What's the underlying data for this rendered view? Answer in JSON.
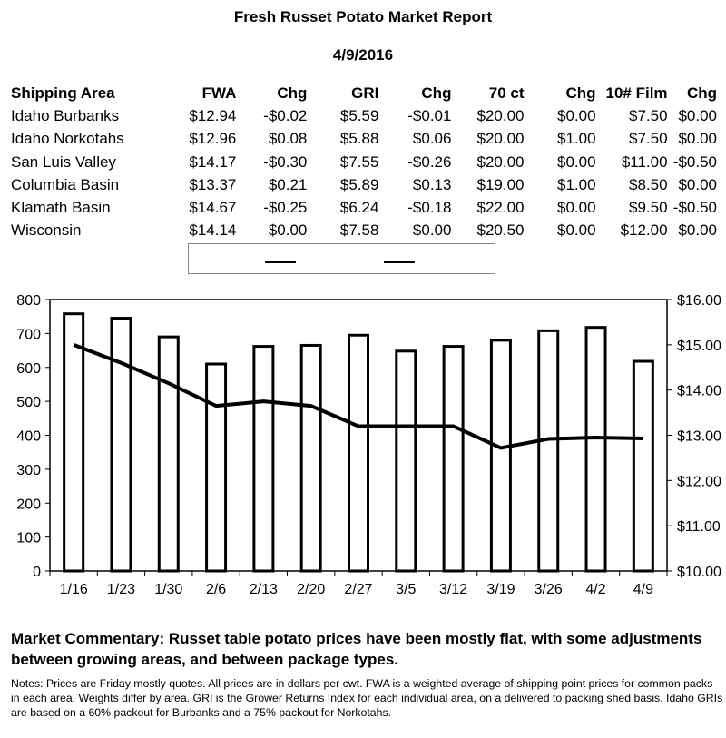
{
  "report": {
    "title": "Fresh Russet Potato Market Report",
    "date": "4/9/2016"
  },
  "table": {
    "headers": [
      "Shipping Area",
      "FWA",
      "Chg",
      "GRI",
      "Chg",
      "70 ct",
      "Chg",
      "10# Film",
      "Chg"
    ],
    "rows": [
      [
        "Idaho Burbanks",
        "$12.94",
        "-$0.02",
        "$5.59",
        "-$0.01",
        "$20.00",
        "$0.00",
        "$7.50",
        "$0.00"
      ],
      [
        "Idaho Norkotahs",
        "$12.96",
        "$0.08",
        "$5.88",
        "$0.06",
        "$20.00",
        "$1.00",
        "$7.50",
        "$0.00"
      ],
      [
        "San Luis Valley",
        "$14.17",
        "-$0.30",
        "$7.55",
        "-$0.26",
        "$20.00",
        "$0.00",
        "$11.00",
        "-$0.50"
      ],
      [
        "Columbia Basin",
        "$13.37",
        "$0.21",
        "$5.89",
        "$0.13",
        "$19.00",
        "$1.00",
        "$8.50",
        "$0.00"
      ],
      [
        "Klamath Basin",
        "$14.67",
        "-$0.25",
        "$6.24",
        "-$0.18",
        "$22.00",
        "$0.00",
        "$9.50",
        "-$0.50"
      ],
      [
        "Wisconsin",
        "$14.14",
        "$0.00",
        "$7.58",
        "$0.00",
        "$20.50",
        "$0.00",
        "$12.00",
        "$0.00"
      ]
    ]
  },
  "chart_data": {
    "type": "bar",
    "categories": [
      "1/16",
      "1/23",
      "1/30",
      "2/6",
      "2/13",
      "2/20",
      "2/27",
      "3/5",
      "3/12",
      "3/19",
      "3/26",
      "4/2",
      "4/9"
    ],
    "series": [
      {
        "kind": "bar",
        "axis": "left",
        "values": [
          758,
          745,
          690,
          610,
          662,
          665,
          695,
          648,
          662,
          680,
          708,
          718,
          618
        ]
      },
      {
        "kind": "line",
        "axis": "right",
        "values": [
          15.0,
          14.6,
          14.15,
          13.65,
          13.75,
          13.65,
          13.2,
          13.2,
          13.2,
          12.72,
          12.92,
          12.95,
          12.93
        ]
      }
    ],
    "y_left": {
      "min": 0,
      "max": 800,
      "ticks": [
        "0",
        "100",
        "200",
        "300",
        "400",
        "500",
        "600",
        "700",
        "800"
      ]
    },
    "y_right": {
      "min": 10,
      "max": 16,
      "ticks": [
        "$10.00",
        "$11.00",
        "$12.00",
        "$13.00",
        "$14.00",
        "$15.00",
        "$16.00"
      ]
    },
    "legend": {
      "position": "top"
    },
    "grid": false
  },
  "commentary": "Market Commentary: Russet table potato prices have been mostly flat, with some adjustments between growing areas, and between package types.",
  "notes": "Notes: Prices are Friday mostly quotes. All prices are in dollars per cwt. FWA is a weighted average of shipping point prices for  common packs in each area. Weights differ by area. GRI is the Grower Returns Index for each individual area, on a delivered to packing shed basis. Idaho GRIs are based on a 60% packout for Burbanks and a 75% packout for Norkotahs."
}
